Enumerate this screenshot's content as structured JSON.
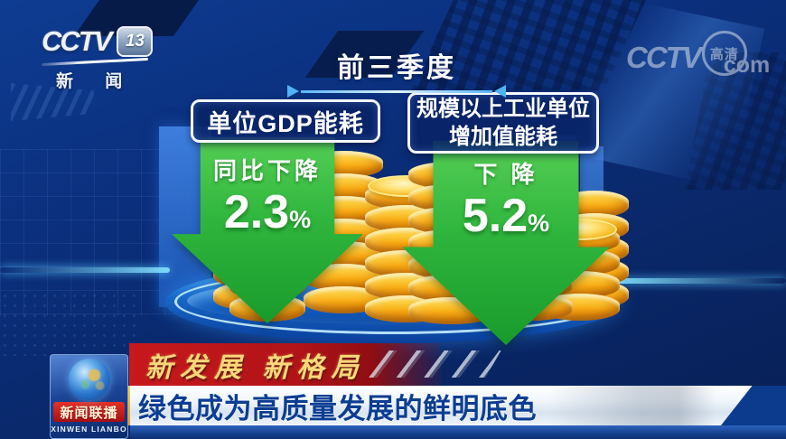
{
  "channel_logo": {
    "brand": "CCTV",
    "number": "13",
    "name": "新 闻"
  },
  "network_watermark": {
    "brand": "CCTV",
    "hd": "高清",
    "suffix": "com"
  },
  "infographic": {
    "period": "前三季度",
    "indicators": [
      {
        "label": "单位GDP能耗",
        "change_label": "同比下降",
        "value": "2.3",
        "unit": "%"
      },
      {
        "label_line1": "规模以上工业单位",
        "label_line2": "增加值能耗",
        "change_label": "下 降",
        "value": "5.2",
        "unit": "%"
      }
    ]
  },
  "lower_third": {
    "program_logo": {
      "title": "新闻联播",
      "subtitle": "XINWEN LIANBO"
    },
    "topic_ribbon": "新发展 新格局",
    "headline": "绿色成为高质量发展的鲜明底色"
  },
  "colors": {
    "background_blue": "#0b2f7c",
    "platform_blue": "#1f86ea",
    "arrow_green": "#2fb53d",
    "coin_gold": "#f7ab16",
    "ribbon_red": "#b01318",
    "headline_blue": "#0c3d92",
    "accent_gold": "#ffd23e",
    "line_cyan": "#59b7f7"
  },
  "chart_data": {
    "type": "bar",
    "title": "前三季度",
    "categories": [
      "单位GDP能耗",
      "规模以上工业单位增加值能耗"
    ],
    "values": [
      2.3,
      5.2
    ],
    "unit": "%",
    "change_labels": [
      "同比下降",
      "下 降"
    ],
    "direction": "decrease"
  }
}
